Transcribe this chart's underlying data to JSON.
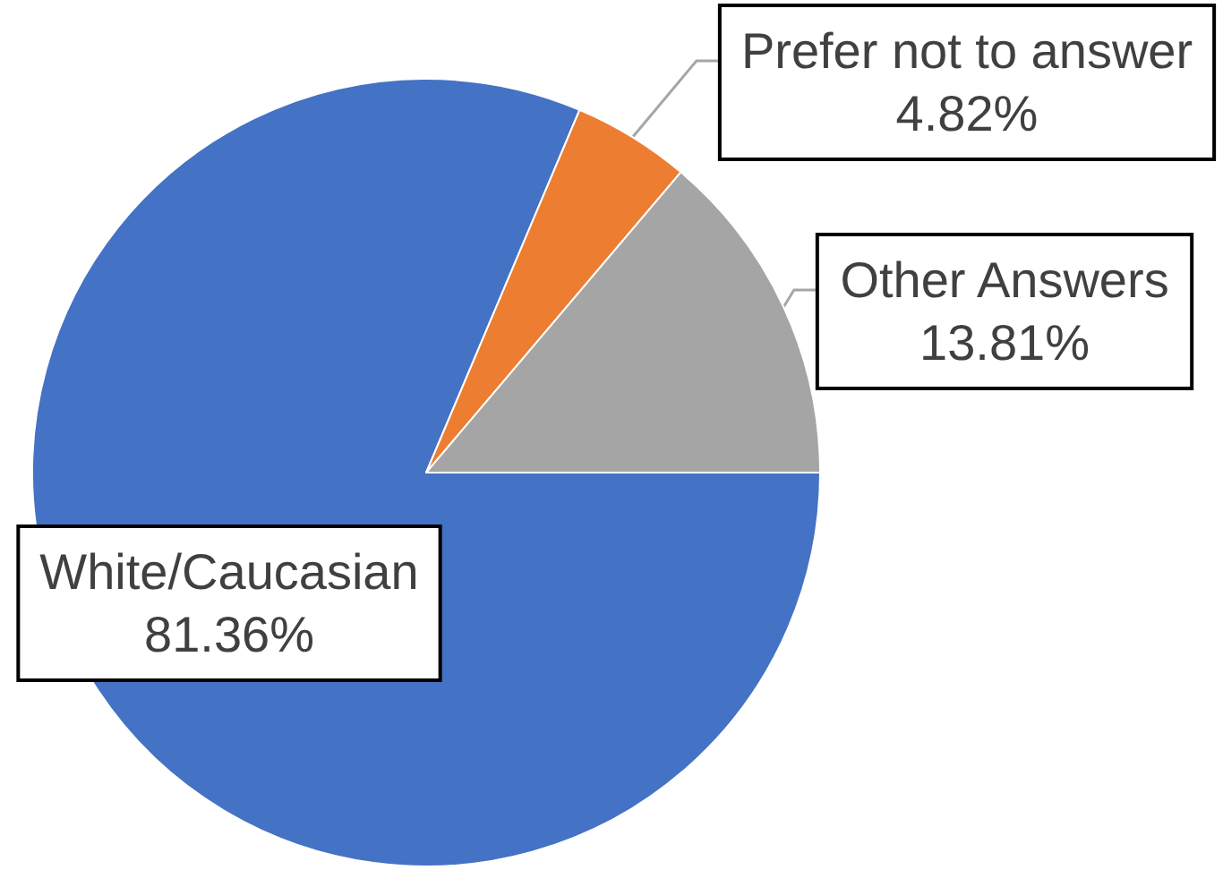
{
  "chart_data": {
    "type": "pie",
    "categories": [
      "White/Caucasian",
      "Prefer not to answer",
      "Other Answers"
    ],
    "values": [
      81.36,
      4.82,
      13.81
    ],
    "value_labels": [
      "81.36%",
      "4.82%",
      "13.81%"
    ],
    "colors": [
      "#4472c4",
      "#ed7d31",
      "#a5a5a5"
    ]
  }
}
